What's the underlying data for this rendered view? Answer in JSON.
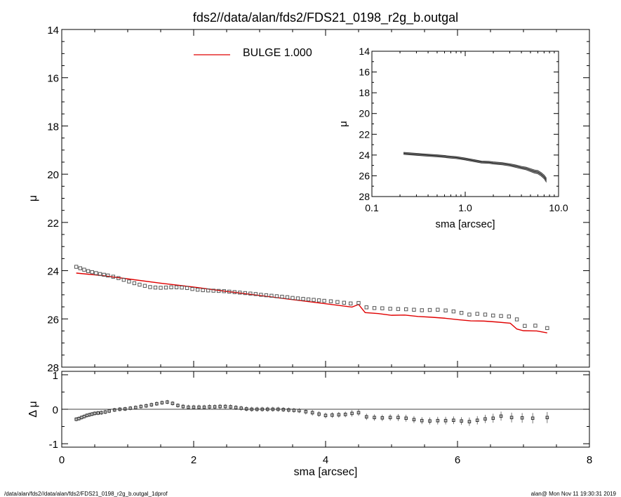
{
  "page_title": "fds2//data/alan/fds2/FDS21_0198_r2g_b.outgal",
  "footer": {
    "left": "/data/alan/fds2//data/alan/fds2/FDS21_0198_r2g_b.outgal_1dprof",
    "right": "alan@  Mon Nov 11 19:30:31 2019"
  },
  "legend": {
    "label": "BULGE  1.000",
    "color": "#e00000"
  },
  "colors": {
    "model": "#e00000",
    "data": "#555555",
    "axes": "#000000"
  },
  "chart_data": [
    {
      "id": "main",
      "type": "scatter",
      "title": "fds2//data/alan/fds2/FDS21_0198_r2g_b.outgal",
      "xlabel": "",
      "ylabel": "μ",
      "xlim": [
        0,
        8
      ],
      "ylim": [
        28,
        14
      ],
      "y_inverted": true,
      "yticks": [
        14,
        16,
        18,
        20,
        22,
        24,
        26,
        28
      ],
      "xticks": [
        0,
        2,
        4,
        6,
        8
      ],
      "series": [
        {
          "name": "",
          "kind": "markers",
          "x": [
            0.22,
            0.28,
            0.34,
            0.4,
            0.46,
            0.52,
            0.58,
            0.64,
            0.7,
            0.78,
            0.86,
            0.94,
            1.02,
            1.1,
            1.18,
            1.26,
            1.34,
            1.42,
            1.5,
            1.58,
            1.66,
            1.74,
            1.82,
            1.9,
            1.98,
            2.06,
            2.14,
            2.22,
            2.3,
            2.38,
            2.46,
            2.54,
            2.62,
            2.7,
            2.78,
            2.86,
            2.94,
            3.02,
            3.1,
            3.18,
            3.26,
            3.34,
            3.42,
            3.5,
            3.58,
            3.66,
            3.74,
            3.82,
            3.9,
            3.98,
            4.08,
            4.18,
            4.28,
            4.38,
            4.5,
            4.62,
            4.74,
            4.86,
            4.98,
            5.1,
            5.22,
            5.34,
            5.46,
            5.58,
            5.7,
            5.82,
            5.94,
            6.06,
            6.18,
            6.3,
            6.42,
            6.54,
            6.66,
            6.78,
            6.9,
            7.02,
            7.18,
            7.36
          ],
          "y": [
            23.84,
            23.9,
            23.96,
            24.02,
            24.06,
            24.1,
            24.14,
            24.17,
            24.2,
            24.25,
            24.31,
            24.38,
            24.45,
            24.52,
            24.58,
            24.63,
            24.68,
            24.7,
            24.71,
            24.7,
            24.69,
            24.69,
            24.7,
            24.72,
            24.76,
            24.79,
            24.81,
            24.82,
            24.83,
            24.84,
            24.85,
            24.87,
            24.89,
            24.91,
            24.93,
            24.95,
            24.97,
            25.0,
            25.02,
            25.04,
            25.06,
            25.08,
            25.1,
            25.13,
            25.15,
            25.17,
            25.19,
            25.21,
            25.23,
            25.25,
            25.27,
            25.3,
            25.33,
            25.36,
            25.34,
            25.52,
            25.55,
            25.56,
            25.58,
            25.59,
            25.6,
            25.62,
            25.64,
            25.63,
            25.62,
            25.65,
            25.69,
            25.75,
            25.82,
            25.79,
            25.82,
            25.86,
            25.88,
            25.9,
            26.02,
            26.29,
            26.28,
            26.38
          ]
        },
        {
          "name": "BULGE  1.000",
          "kind": "line",
          "x": [
            0.22,
            0.6,
            1.0,
            1.5,
            2.0,
            2.5,
            3.0,
            3.5,
            4.0,
            4.4,
            4.5,
            4.6,
            4.8,
            5.0,
            5.2,
            5.4,
            5.6,
            5.8,
            6.0,
            6.2,
            6.4,
            6.6,
            6.8,
            6.9,
            7.0,
            7.2,
            7.36
          ],
          "y": [
            24.1,
            24.2,
            24.34,
            24.52,
            24.68,
            24.86,
            25.03,
            25.2,
            25.37,
            25.51,
            25.4,
            25.74,
            25.78,
            25.85,
            25.84,
            25.9,
            25.93,
            25.97,
            26.03,
            26.08,
            26.09,
            26.13,
            26.18,
            26.42,
            26.49,
            26.5,
            26.58
          ]
        }
      ]
    },
    {
      "id": "residual",
      "type": "scatter",
      "xlabel": "sma [arcsec]",
      "ylabel": "Δ μ",
      "xlim": [
        0,
        8
      ],
      "ylim": [
        -1.1,
        1.1
      ],
      "yticks": [
        -1,
        0,
        1
      ],
      "xticks": [
        0,
        2,
        4,
        6,
        8
      ],
      "zero_line": true,
      "series": [
        {
          "name": "",
          "kind": "markers_with_errorbars",
          "x": [
            0.22,
            0.26,
            0.3,
            0.34,
            0.38,
            0.42,
            0.46,
            0.5,
            0.55,
            0.6,
            0.66,
            0.72,
            0.8,
            0.88,
            0.96,
            1.04,
            1.12,
            1.2,
            1.28,
            1.36,
            1.44,
            1.52,
            1.6,
            1.68,
            1.76,
            1.84,
            1.92,
            2.0,
            2.08,
            2.16,
            2.24,
            2.32,
            2.4,
            2.48,
            2.56,
            2.64,
            2.72,
            2.8,
            2.88,
            2.96,
            3.04,
            3.12,
            3.2,
            3.28,
            3.36,
            3.44,
            3.52,
            3.6,
            3.7,
            3.8,
            3.9,
            4.0,
            4.1,
            4.2,
            4.3,
            4.4,
            4.5,
            4.62,
            4.74,
            4.86,
            4.98,
            5.1,
            5.22,
            5.34,
            5.46,
            5.58,
            5.7,
            5.82,
            5.94,
            6.06,
            6.18,
            6.3,
            6.42,
            6.54,
            6.66,
            6.82,
            6.98,
            7.14,
            7.36
          ],
          "y": [
            -0.29,
            -0.27,
            -0.24,
            -0.21,
            -0.18,
            -0.16,
            -0.14,
            -0.12,
            -0.11,
            -0.1,
            -0.08,
            -0.05,
            -0.02,
            0.0,
            0.01,
            0.03,
            0.05,
            0.08,
            0.1,
            0.13,
            0.16,
            0.19,
            0.21,
            0.17,
            0.11,
            0.08,
            0.06,
            0.06,
            0.06,
            0.06,
            0.07,
            0.07,
            0.08,
            0.08,
            0.07,
            0.05,
            0.03,
            0.01,
            0.0,
            0.0,
            0.0,
            0.0,
            0.0,
            0.0,
            -0.01,
            -0.02,
            -0.03,
            -0.04,
            -0.07,
            -0.1,
            -0.14,
            -0.18,
            -0.17,
            -0.16,
            -0.15,
            -0.12,
            -0.1,
            -0.22,
            -0.24,
            -0.25,
            -0.24,
            -0.24,
            -0.26,
            -0.3,
            -0.33,
            -0.34,
            -0.33,
            -0.33,
            -0.32,
            -0.34,
            -0.36,
            -0.32,
            -0.28,
            -0.26,
            -0.2,
            -0.24,
            -0.25,
            -0.26,
            -0.24
          ],
          "err": [
            0.02,
            0.02,
            0.02,
            0.02,
            0.02,
            0.02,
            0.02,
            0.02,
            0.02,
            0.02,
            0.02,
            0.02,
            0.02,
            0.02,
            0.02,
            0.02,
            0.02,
            0.02,
            0.02,
            0.02,
            0.02,
            0.02,
            0.02,
            0.02,
            0.02,
            0.03,
            0.03,
            0.03,
            0.03,
            0.03,
            0.03,
            0.03,
            0.03,
            0.03,
            0.03,
            0.03,
            0.03,
            0.03,
            0.03,
            0.03,
            0.03,
            0.03,
            0.03,
            0.03,
            0.03,
            0.03,
            0.03,
            0.03,
            0.04,
            0.04,
            0.04,
            0.04,
            0.04,
            0.04,
            0.04,
            0.05,
            0.05,
            0.05,
            0.05,
            0.05,
            0.05,
            0.06,
            0.06,
            0.06,
            0.06,
            0.06,
            0.07,
            0.07,
            0.07,
            0.07,
            0.08,
            0.08,
            0.08,
            0.09,
            0.09,
            0.1,
            0.1,
            0.11,
            0.12
          ]
        }
      ]
    },
    {
      "id": "inset",
      "type": "line",
      "xlabel": "sma [arcsec]",
      "ylabel": "μ",
      "x_scale": "log",
      "xlim": [
        0.1,
        10.0
      ],
      "xticks": [
        0.1,
        1.0,
        10.0
      ],
      "xtick_labels": [
        "0.1",
        "1.0",
        "10.0"
      ],
      "ylim": [
        28,
        14
      ],
      "y_inverted": true,
      "yticks": [
        14,
        16,
        18,
        20,
        22,
        24,
        26,
        28
      ],
      "series": [
        {
          "name": "",
          "kind": "band",
          "x": [
            0.22,
            0.3,
            0.4,
            0.5,
            0.6,
            0.7,
            0.8,
            1.0,
            1.2,
            1.5,
            1.8,
            2.0,
            2.5,
            3.0,
            3.5,
            4.0,
            4.5,
            5.0,
            5.5,
            6.0,
            6.5,
            7.0,
            7.36
          ],
          "y": [
            23.84,
            23.93,
            24.02,
            24.08,
            24.14,
            24.2,
            24.25,
            24.38,
            24.52,
            24.68,
            24.7,
            24.76,
            24.84,
            24.95,
            25.08,
            25.21,
            25.3,
            25.45,
            25.58,
            25.65,
            25.85,
            26.1,
            26.38
          ],
          "spread": [
            0.2,
            0.2,
            0.2,
            0.2,
            0.2,
            0.2,
            0.2,
            0.2,
            0.2,
            0.2,
            0.2,
            0.22,
            0.22,
            0.22,
            0.24,
            0.24,
            0.26,
            0.28,
            0.3,
            0.32,
            0.34,
            0.36,
            0.4
          ]
        }
      ]
    }
  ]
}
